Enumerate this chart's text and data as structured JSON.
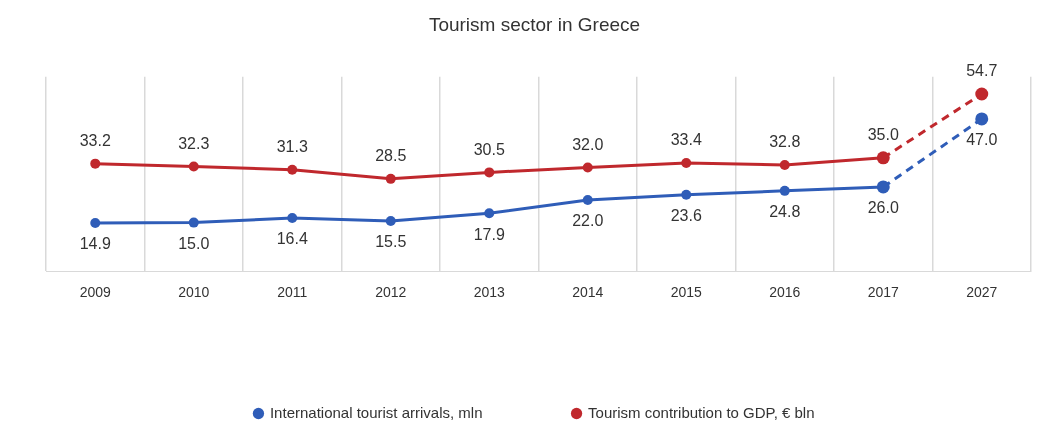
{
  "chart_data": {
    "type": "line",
    "title": "Tourism sector in Greece",
    "categories": [
      "2009",
      "2010",
      "2011",
      "2012",
      "2013",
      "2014",
      "2015",
      "2016",
      "2017",
      "2027"
    ],
    "series": [
      {
        "name": "International tourist arrivals, mln",
        "color": "#2f5db8",
        "values": [
          14.9,
          15.0,
          16.4,
          15.5,
          17.9,
          22.0,
          23.6,
          24.8,
          26.0,
          null
        ],
        "value_labels": [
          "14.9",
          "15.0",
          "16.4",
          "15.5",
          "17.9",
          "22.0",
          "23.6",
          "24.8",
          "26.0",
          null
        ]
      },
      {
        "name": "Tourism contribution to GDP, € bln",
        "color": "#c0282d",
        "values": [
          33.2,
          32.3,
          31.3,
          28.5,
          30.5,
          32.0,
          33.4,
          32.8,
          35.0,
          null
        ],
        "value_labels": [
          "33.2",
          "32.3",
          "31.3",
          "28.5",
          "30.5",
          "32.0",
          "33.4",
          "32.8",
          "35.0",
          null
        ]
      },
      {
        "color": "#2f5db8",
        "line_style": "dashed",
        "values": [
          null,
          null,
          null,
          null,
          null,
          null,
          null,
          null,
          26.0,
          47.0
        ],
        "value_labels": [
          null,
          null,
          null,
          null,
          null,
          null,
          null,
          null,
          null,
          "47.0"
        ]
      },
      {
        "color": "#c0282d",
        "line_style": "dashed",
        "values": [
          null,
          null,
          null,
          null,
          null,
          null,
          null,
          null,
          35.0,
          54.7
        ],
        "value_labels": [
          null,
          null,
          null,
          null,
          null,
          null,
          null,
          null,
          null,
          "54.7"
        ]
      }
    ],
    "relative": false,
    "grid": "x",
    "legend": "bottom",
    "marker": "circle",
    "line_style": "solid"
  }
}
